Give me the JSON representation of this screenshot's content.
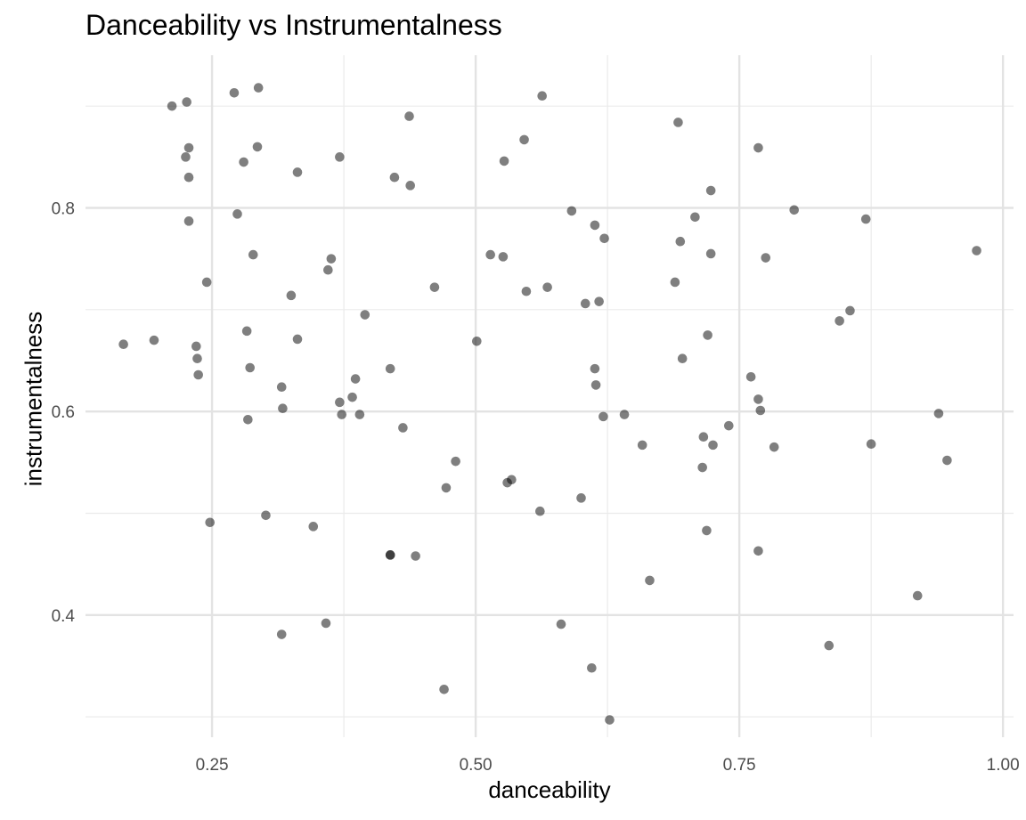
{
  "chart_data": {
    "type": "scatter",
    "title": "Danceability vs Instrumentalness",
    "xlabel": "danceability",
    "ylabel": "instrumentalness",
    "xlim": [
      0.13,
      1.01
    ],
    "ylim": [
      0.28,
      0.95
    ],
    "x_major_ticks": [
      0.25,
      0.5,
      0.75,
      1.0
    ],
    "x_tick_labels": [
      "0.25",
      "0.50",
      "0.75",
      "1.00"
    ],
    "x_minor_ticks": [
      0.375,
      0.625,
      0.875
    ],
    "y_major_ticks": [
      0.4,
      0.6,
      0.8
    ],
    "y_tick_labels": [
      "0.4",
      "0.6",
      "0.8"
    ],
    "y_minor_ticks": [
      0.3,
      0.5,
      0.7,
      0.9
    ],
    "grid": true,
    "point_color": "#000000",
    "point_opacity": 0.5,
    "points": [
      {
        "x": 0.271,
        "y": 0.913
      },
      {
        "x": 0.294,
        "y": 0.918
      },
      {
        "x": 0.226,
        "y": 0.904
      },
      {
        "x": 0.212,
        "y": 0.9
      },
      {
        "x": 0.228,
        "y": 0.859
      },
      {
        "x": 0.225,
        "y": 0.85
      },
      {
        "x": 0.28,
        "y": 0.845
      },
      {
        "x": 0.293,
        "y": 0.86
      },
      {
        "x": 0.228,
        "y": 0.83
      },
      {
        "x": 0.228,
        "y": 0.787
      },
      {
        "x": 0.274,
        "y": 0.794
      },
      {
        "x": 0.331,
        "y": 0.835
      },
      {
        "x": 0.371,
        "y": 0.85
      },
      {
        "x": 0.437,
        "y": 0.89
      },
      {
        "x": 0.423,
        "y": 0.83
      },
      {
        "x": 0.438,
        "y": 0.822
      },
      {
        "x": 0.563,
        "y": 0.91
      },
      {
        "x": 0.546,
        "y": 0.867
      },
      {
        "x": 0.527,
        "y": 0.846
      },
      {
        "x": 0.692,
        "y": 0.884
      },
      {
        "x": 0.768,
        "y": 0.859
      },
      {
        "x": 0.723,
        "y": 0.817
      },
      {
        "x": 0.802,
        "y": 0.798
      },
      {
        "x": 0.708,
        "y": 0.791
      },
      {
        "x": 0.87,
        "y": 0.789
      },
      {
        "x": 0.591,
        "y": 0.797
      },
      {
        "x": 0.613,
        "y": 0.783
      },
      {
        "x": 0.622,
        "y": 0.77
      },
      {
        "x": 0.694,
        "y": 0.767
      },
      {
        "x": 0.723,
        "y": 0.755
      },
      {
        "x": 0.775,
        "y": 0.751
      },
      {
        "x": 0.975,
        "y": 0.758
      },
      {
        "x": 0.514,
        "y": 0.754
      },
      {
        "x": 0.526,
        "y": 0.752
      },
      {
        "x": 0.289,
        "y": 0.754
      },
      {
        "x": 0.363,
        "y": 0.75
      },
      {
        "x": 0.36,
        "y": 0.739
      },
      {
        "x": 0.245,
        "y": 0.727
      },
      {
        "x": 0.325,
        "y": 0.714
      },
      {
        "x": 0.461,
        "y": 0.722
      },
      {
        "x": 0.548,
        "y": 0.718
      },
      {
        "x": 0.568,
        "y": 0.722
      },
      {
        "x": 0.689,
        "y": 0.727
      },
      {
        "x": 0.604,
        "y": 0.706
      },
      {
        "x": 0.617,
        "y": 0.708
      },
      {
        "x": 0.395,
        "y": 0.695
      },
      {
        "x": 0.855,
        "y": 0.699
      },
      {
        "x": 0.845,
        "y": 0.689
      },
      {
        "x": 0.72,
        "y": 0.675
      },
      {
        "x": 0.283,
        "y": 0.679
      },
      {
        "x": 0.331,
        "y": 0.671
      },
      {
        "x": 0.166,
        "y": 0.666
      },
      {
        "x": 0.195,
        "y": 0.67
      },
      {
        "x": 0.235,
        "y": 0.664
      },
      {
        "x": 0.501,
        "y": 0.669
      },
      {
        "x": 0.236,
        "y": 0.652
      },
      {
        "x": 0.237,
        "y": 0.636
      },
      {
        "x": 0.286,
        "y": 0.643
      },
      {
        "x": 0.419,
        "y": 0.642
      },
      {
        "x": 0.386,
        "y": 0.632
      },
      {
        "x": 0.696,
        "y": 0.652
      },
      {
        "x": 0.613,
        "y": 0.642
      },
      {
        "x": 0.761,
        "y": 0.634
      },
      {
        "x": 0.316,
        "y": 0.624
      },
      {
        "x": 0.614,
        "y": 0.626
      },
      {
        "x": 0.383,
        "y": 0.614
      },
      {
        "x": 0.371,
        "y": 0.609
      },
      {
        "x": 0.317,
        "y": 0.603
      },
      {
        "x": 0.768,
        "y": 0.612
      },
      {
        "x": 0.373,
        "y": 0.597
      },
      {
        "x": 0.39,
        "y": 0.597
      },
      {
        "x": 0.284,
        "y": 0.592
      },
      {
        "x": 0.621,
        "y": 0.595
      },
      {
        "x": 0.641,
        "y": 0.597
      },
      {
        "x": 0.77,
        "y": 0.601
      },
      {
        "x": 0.939,
        "y": 0.598
      },
      {
        "x": 0.431,
        "y": 0.584
      },
      {
        "x": 0.74,
        "y": 0.586
      },
      {
        "x": 0.716,
        "y": 0.575
      },
      {
        "x": 0.658,
        "y": 0.567
      },
      {
        "x": 0.725,
        "y": 0.567
      },
      {
        "x": 0.783,
        "y": 0.565
      },
      {
        "x": 0.875,
        "y": 0.568
      },
      {
        "x": 0.947,
        "y": 0.552
      },
      {
        "x": 0.481,
        "y": 0.551
      },
      {
        "x": 0.715,
        "y": 0.545
      },
      {
        "x": 0.534,
        "y": 0.533
      },
      {
        "x": 0.53,
        "y": 0.53
      },
      {
        "x": 0.472,
        "y": 0.525
      },
      {
        "x": 0.6,
        "y": 0.515
      },
      {
        "x": 0.561,
        "y": 0.502
      },
      {
        "x": 0.301,
        "y": 0.498
      },
      {
        "x": 0.248,
        "y": 0.491
      },
      {
        "x": 0.346,
        "y": 0.487
      },
      {
        "x": 0.719,
        "y": 0.483
      },
      {
        "x": 0.768,
        "y": 0.463
      },
      {
        "x": 0.419,
        "y": 0.459
      },
      {
        "x": 0.419,
        "y": 0.459
      },
      {
        "x": 0.443,
        "y": 0.458
      },
      {
        "x": 0.665,
        "y": 0.434
      },
      {
        "x": 0.919,
        "y": 0.419
      },
      {
        "x": 0.358,
        "y": 0.392
      },
      {
        "x": 0.581,
        "y": 0.391
      },
      {
        "x": 0.316,
        "y": 0.381
      },
      {
        "x": 0.835,
        "y": 0.37
      },
      {
        "x": 0.61,
        "y": 0.348
      },
      {
        "x": 0.47,
        "y": 0.327
      },
      {
        "x": 0.627,
        "y": 0.297
      }
    ]
  }
}
